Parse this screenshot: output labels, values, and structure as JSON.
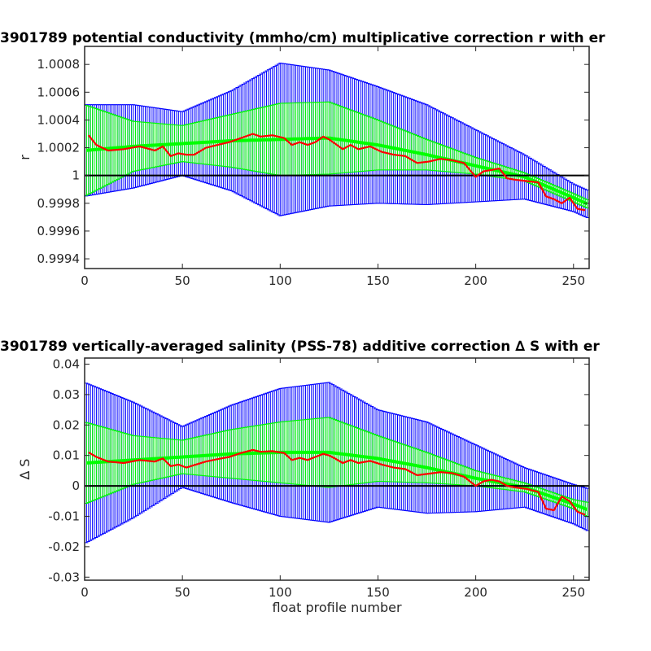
{
  "chart_data": [
    {
      "type": "line",
      "title": "3901789 potential conductivity (mmho/cm) multiplicative correction r with er",
      "xlabel": "",
      "ylabel": "r",
      "xlim": [
        0,
        258
      ],
      "ylim": [
        0.99933,
        1.00093
      ],
      "xticks": [
        0,
        50,
        100,
        150,
        200,
        250
      ],
      "xtick_labels": [
        "0",
        "50",
        "100",
        "150",
        "200",
        "250"
      ],
      "yticks": [
        0.9994,
        0.9996,
        0.9998,
        1,
        1.0002,
        1.0004,
        1.0006,
        1.0008
      ],
      "ytick_labels": [
        "0.9994",
        "0.9996",
        "0.9998",
        "1",
        "1.0002",
        "1.0004",
        "1.0006",
        "1.0008"
      ],
      "grid": false,
      "reference_line": 1,
      "colors": {
        "outer": "#0000ff",
        "inner": "#00ff00",
        "mean": "#ff0000",
        "reference": "#000000"
      },
      "series": [
        {
          "name": "",
          "role": "fit",
          "x": [
            0,
            25,
            50,
            75,
            100,
            125,
            150,
            175,
            200,
            225,
            250,
            258
          ],
          "values": [
            1.00018,
            1.00021,
            1.00023,
            1.00025,
            1.00026,
            1.00027,
            1.00022,
            1.00015,
            1.00007,
            0.99999,
            0.99984,
            0.99979
          ]
        },
        {
          "name": "",
          "role": "error_2sigma",
          "x": [
            0,
            25,
            50,
            75,
            100,
            125,
            150,
            175,
            200,
            225,
            250,
            258
          ],
          "values": [
            0.00033,
            0.0003,
            0.00023,
            0.00036,
            0.00055,
            0.00049,
            0.00042,
            0.00036,
            0.00026,
            0.00016,
            0.0001,
            0.0001
          ]
        },
        {
          "name": "",
          "role": "error_1sigma",
          "x": [
            0,
            25,
            50,
            75,
            100,
            125,
            150,
            175,
            200,
            225,
            250,
            258
          ],
          "values": [
            0.00033,
            0.00018,
            0.00013,
            0.00019,
            0.00026,
            0.00026,
            0.00018,
            0.00011,
            6e-05,
            3e-05,
            3e-05,
            3e-05
          ]
        },
        {
          "name": "",
          "role": "profile_mean",
          "x": [
            2,
            6,
            12,
            20,
            28,
            36,
            40,
            44,
            48,
            52,
            56,
            62,
            68,
            74,
            80,
            86,
            90,
            96,
            102,
            106,
            110,
            114,
            118,
            122,
            125,
            128,
            132,
            136,
            140,
            146,
            152,
            158,
            164,
            170,
            176,
            182,
            188,
            194,
            200,
            204,
            208,
            212,
            216,
            220,
            226,
            232,
            236,
            240,
            244,
            248,
            252,
            256
          ],
          "values": [
            1.00029,
            1.00022,
            1.00018,
            1.00019,
            1.00021,
            1.00018,
            1.00021,
            1.00014,
            1.00016,
            1.00015,
            1.00015,
            1.0002,
            1.00022,
            1.00024,
            1.00027,
            1.0003,
            1.00028,
            1.00029,
            1.00027,
            1.00022,
            1.00024,
            1.00022,
            1.00024,
            1.00028,
            1.00026,
            1.00023,
            1.00019,
            1.00022,
            1.00019,
            1.00021,
            1.00017,
            1.00015,
            1.00014,
            1.00009,
            1.0001,
            1.00012,
            1.00011,
            1.00009,
            0.99999,
            1.00003,
            1.00004,
            1.00005,
            0.99998,
            0.99997,
            0.99996,
            0.99995,
            0.99985,
            0.99983,
            0.9998,
            0.99984,
            0.99976,
            0.99975
          ]
        }
      ]
    },
    {
      "type": "line",
      "title": "3901789 vertically-averaged salinity (PSS-78) additive correction ∆ S with er",
      "xlabel": "float profile number",
      "ylabel": "∆ S",
      "xlim": [
        0,
        258
      ],
      "ylim": [
        -0.031,
        0.042
      ],
      "xticks": [
        0,
        50,
        100,
        150,
        200,
        250
      ],
      "xtick_labels": [
        "0",
        "50",
        "100",
        "150",
        "200",
        "250"
      ],
      "yticks": [
        -0.03,
        -0.02,
        -0.01,
        0,
        0.01,
        0.02,
        0.03,
        0.04
      ],
      "ytick_labels": [
        "-0.03",
        "-0.02",
        "-0.01",
        "0",
        "0.01",
        "0.02",
        "0.03",
        "0.04"
      ],
      "grid": false,
      "reference_line": 0,
      "colors": {
        "outer": "#0000ff",
        "inner": "#00ff00",
        "mean": "#ff0000",
        "reference": "#000000"
      },
      "series": [
        {
          "name": "",
          "role": "fit",
          "x": [
            0,
            25,
            50,
            75,
            100,
            125,
            150,
            175,
            200,
            225,
            250,
            258
          ],
          "values": [
            0.0075,
            0.0085,
            0.0095,
            0.0105,
            0.011,
            0.011,
            0.009,
            0.006,
            0.0025,
            -0.0005,
            -0.006,
            -0.008
          ]
        },
        {
          "name": "",
          "role": "error_2sigma",
          "x": [
            0,
            25,
            50,
            75,
            100,
            125,
            150,
            175,
            200,
            225,
            250,
            258
          ],
          "values": [
            0.0265,
            0.019,
            0.01,
            0.016,
            0.021,
            0.023,
            0.016,
            0.015,
            0.011,
            0.0065,
            0.0065,
            0.007
          ]
        },
        {
          "name": "",
          "role": "error_1sigma",
          "x": [
            0,
            25,
            50,
            75,
            100,
            125,
            150,
            175,
            200,
            225,
            250,
            258
          ],
          "values": [
            0.0135,
            0.008,
            0.0055,
            0.008,
            0.01,
            0.0115,
            0.0075,
            0.005,
            0.0025,
            0.0015,
            0.0015,
            0.0025
          ]
        },
        {
          "name": "",
          "role": "profile_mean",
          "x": [
            2,
            6,
            12,
            20,
            28,
            36,
            40,
            44,
            48,
            52,
            56,
            62,
            68,
            74,
            80,
            86,
            90,
            96,
            102,
            106,
            110,
            114,
            118,
            122,
            125,
            128,
            132,
            136,
            140,
            146,
            152,
            158,
            164,
            170,
            176,
            182,
            188,
            194,
            200,
            204,
            208,
            212,
            216,
            220,
            226,
            232,
            236,
            240,
            244,
            248,
            252,
            256
          ],
          "values": [
            0.011,
            0.0095,
            0.008,
            0.0075,
            0.0085,
            0.008,
            0.009,
            0.0065,
            0.007,
            0.006,
            0.0068,
            0.008,
            0.0088,
            0.0095,
            0.0108,
            0.0118,
            0.0112,
            0.0114,
            0.0108,
            0.0085,
            0.0092,
            0.0085,
            0.0095,
            0.0105,
            0.01,
            0.009,
            0.0075,
            0.0085,
            0.0075,
            0.0082,
            0.007,
            0.006,
            0.0055,
            0.0035,
            0.004,
            0.0045,
            0.0042,
            0.003,
            0.0,
            0.0015,
            0.002,
            0.0015,
            0.0,
            -0.0005,
            -0.001,
            -0.002,
            -0.0075,
            -0.008,
            -0.0035,
            -0.005,
            -0.0085,
            -0.0095
          ]
        }
      ]
    }
  ]
}
